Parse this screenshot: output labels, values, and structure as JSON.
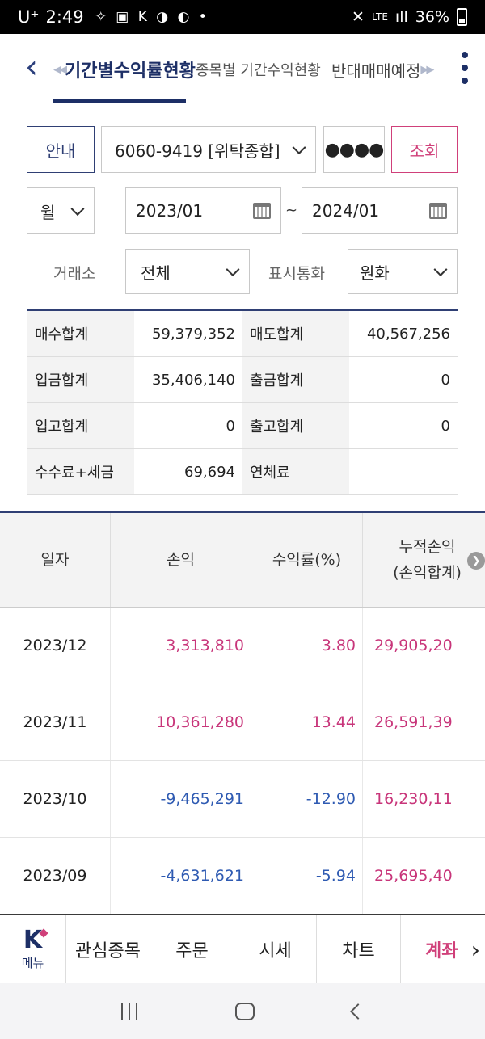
{
  "status_bar": {
    "carrier": "U⁺",
    "time": "2:49",
    "notification_icons": "✧ ▣ K ◑ ◐ •",
    "network": "LTE",
    "signal": "ıll",
    "battery_percent": "36%"
  },
  "header": {
    "tabs": [
      {
        "label": "기간별수익률현황",
        "active": true
      },
      {
        "label": "종목별 기간수익현황",
        "active": false
      },
      {
        "label": "반대매매예정",
        "active": false
      }
    ]
  },
  "form": {
    "guide_button": "안내",
    "account_value": "6060-9419 [위탁종합]",
    "password_mask": "●●●●",
    "query_button": "조회",
    "period_value": "월",
    "date_from": "2023/01",
    "date_separator": "~",
    "date_to": "2024/01",
    "exchange_label": "거래소",
    "exchange_value": "전체",
    "currency_label": "표시통화",
    "currency_value": "원화"
  },
  "summary": [
    {
      "label_a": "매수합계",
      "value_a": "59,379,352",
      "label_b": "매도합계",
      "value_b": "40,567,256"
    },
    {
      "label_a": "입금합계",
      "value_a": "35,406,140",
      "label_b": "출금합계",
      "value_b": "0"
    },
    {
      "label_a": "입고합계",
      "value_a": "0",
      "label_b": "출고합계",
      "value_b": "0"
    },
    {
      "label_a": "수수료+세금",
      "value_a": "69,694",
      "label_b": "연체료",
      "value_b": ""
    }
  ],
  "table": {
    "headers": {
      "date": "일자",
      "pnl": "손익",
      "rate": "수익률(%)",
      "cumulative_line1": "누적손익",
      "cumulative_line2": "(손익합계)"
    },
    "rows": [
      {
        "date": "2023/12",
        "pnl": "3,313,810",
        "rate": "3.80",
        "cumulative": "29,905,20",
        "sign": "pos"
      },
      {
        "date": "2023/11",
        "pnl": "10,361,280",
        "rate": "13.44",
        "cumulative": "26,591,39",
        "sign": "pos"
      },
      {
        "date": "2023/10",
        "pnl": "-9,465,291",
        "rate": "-12.90",
        "cumulative": "16,230,11",
        "sign": "neg"
      },
      {
        "date": "2023/09",
        "pnl": "-4,631,621",
        "rate": "-5.94",
        "cumulative": "25,695,40",
        "sign": "neg"
      }
    ]
  },
  "bottom_nav": {
    "menu_logo": "K",
    "menu_label": "메뉴",
    "items": [
      "관심종목",
      "주문",
      "시세",
      "차트",
      "계좌"
    ],
    "next_glyph": "›"
  },
  "colors": {
    "navy": "#1d2f66",
    "positive": "#c8357a",
    "negative": "#2e5ab2",
    "accent_pink": "#d0407a"
  }
}
